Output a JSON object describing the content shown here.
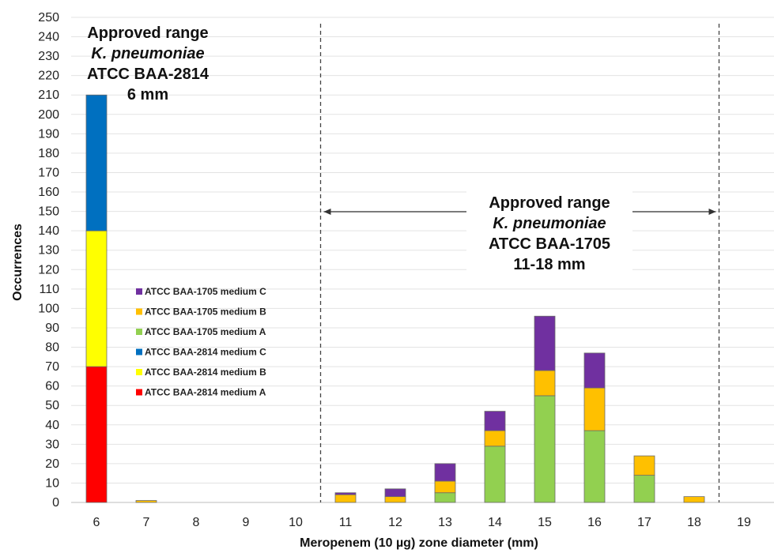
{
  "chart_data": {
    "type": "bar",
    "stacked": true,
    "xlabel": "Meropenem (10 µg) zone diameter (mm)",
    "ylabel": "Occurrences",
    "categories": [
      "6",
      "7",
      "8",
      "9",
      "10",
      "11",
      "12",
      "13",
      "14",
      "15",
      "16",
      "17",
      "18",
      "19"
    ],
    "ylim": [
      0,
      250
    ],
    "ytick_step": 10,
    "grid": true,
    "series": [
      {
        "name": "ATCC BAA-2814 medium A",
        "color": "#ff0000",
        "values": [
          70,
          0,
          0,
          0,
          0,
          0,
          0,
          0,
          0,
          0,
          0,
          0,
          0,
          0
        ]
      },
      {
        "name": "ATCC BAA-2814 medium B",
        "color": "#ffff00",
        "values": [
          70,
          0,
          0,
          0,
          0,
          0,
          0,
          0,
          0,
          0,
          0,
          0,
          0,
          0
        ]
      },
      {
        "name": "ATCC BAA-2814 medium C",
        "color": "#0070c0",
        "values": [
          70,
          0,
          0,
          0,
          0,
          0,
          0,
          0,
          0,
          0,
          0,
          0,
          0,
          0
        ]
      },
      {
        "name": "ATCC BAA-1705 medium A",
        "color": "#92d050",
        "values": [
          0,
          0,
          0,
          0,
          0,
          0,
          0,
          5,
          29,
          55,
          37,
          14,
          0,
          0
        ]
      },
      {
        "name": "ATCC BAA-1705 medium B",
        "color": "#ffc000",
        "values": [
          0,
          1,
          0,
          0,
          0,
          4,
          3,
          6,
          8,
          13,
          22,
          10,
          3,
          0
        ]
      },
      {
        "name": "ATCC BAA-1705 medium C",
        "color": "#7030a0",
        "values": [
          0,
          0,
          0,
          0,
          0,
          1,
          4,
          9,
          10,
          28,
          18,
          0,
          0,
          0
        ]
      }
    ],
    "legend_order": [
      5,
      4,
      3,
      2,
      1,
      0
    ],
    "legend_position": "center-left",
    "annotations": {
      "left": {
        "lines": [
          "Approved range",
          "K. pneumoniae",
          "ATCC BAA-2814",
          "6 mm"
        ]
      },
      "right": {
        "lines": [
          "Approved range",
          "K. pneumoniae",
          "ATCC BAA-1705",
          "11-18 mm"
        ],
        "range_start": 10.5,
        "range_end": 18.5
      }
    }
  }
}
